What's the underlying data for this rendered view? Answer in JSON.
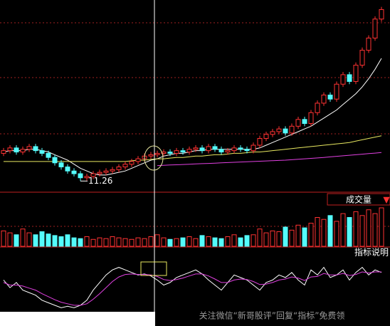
{
  "chart_data": [
    {
      "type": "candlestick",
      "open": [
        13.3,
        13.5,
        13.7,
        13.4,
        13.6,
        13.8,
        13.5,
        13.3,
        13.0,
        12.6,
        12.3,
        12.0,
        11.8,
        11.5,
        11.6,
        11.8,
        11.9,
        12.0,
        12.1,
        12.3,
        12.5,
        12.7,
        12.9,
        13.1,
        13.2,
        13.3,
        13.4,
        13.3,
        13.5,
        13.4,
        13.6,
        13.7,
        13.5,
        13.8,
        13.6,
        13.4,
        13.5,
        13.7,
        13.6,
        13.5,
        13.9,
        14.4,
        14.7,
        14.9,
        15.1,
        14.8,
        15.3,
        15.8,
        15.5,
        16.3,
        17.0,
        17.6,
        17.3,
        18.4,
        19.1,
        18.6,
        19.8,
        20.9,
        21.8,
        23.2
      ],
      "close": [
        13.5,
        13.7,
        13.4,
        13.6,
        13.8,
        13.5,
        13.3,
        13.0,
        12.6,
        12.3,
        12.0,
        11.8,
        11.5,
        11.6,
        11.8,
        11.9,
        12.0,
        12.1,
        12.3,
        12.5,
        12.7,
        12.9,
        13.1,
        13.2,
        13.3,
        13.4,
        13.3,
        13.5,
        13.4,
        13.6,
        13.7,
        13.5,
        13.8,
        13.6,
        13.4,
        13.5,
        13.7,
        13.6,
        13.5,
        13.9,
        14.4,
        14.7,
        14.9,
        15.1,
        14.8,
        15.3,
        15.8,
        15.5,
        16.3,
        17.0,
        17.6,
        17.3,
        18.4,
        19.1,
        18.6,
        19.8,
        20.9,
        21.8,
        23.2,
        23.9
      ],
      "high": [
        13.7,
        13.9,
        13.9,
        13.8,
        14.0,
        14.0,
        13.7,
        13.5,
        13.2,
        12.8,
        12.5,
        12.2,
        12.0,
        11.8,
        12.0,
        12.1,
        12.2,
        12.3,
        12.5,
        12.7,
        12.9,
        13.1,
        13.3,
        13.4,
        13.5,
        13.6,
        13.6,
        13.7,
        13.7,
        13.8,
        13.9,
        13.9,
        14.0,
        14.0,
        13.8,
        13.7,
        13.9,
        13.9,
        13.8,
        14.1,
        14.6,
        14.9,
        15.1,
        15.3,
        15.3,
        15.5,
        16.0,
        16.0,
        16.5,
        17.2,
        17.8,
        17.8,
        18.6,
        19.3,
        19.3,
        20.0,
        21.1,
        22.0,
        23.4,
        24.1
      ],
      "low": [
        13.1,
        13.3,
        13.2,
        13.2,
        13.4,
        13.3,
        13.1,
        12.8,
        12.4,
        12.1,
        11.8,
        11.6,
        11.26,
        11.3,
        11.4,
        11.6,
        11.7,
        11.8,
        11.9,
        12.1,
        12.3,
        12.5,
        12.7,
        12.9,
        13.0,
        13.1,
        13.1,
        13.1,
        13.2,
        13.2,
        13.4,
        13.3,
        13.3,
        13.4,
        13.2,
        13.2,
        13.3,
        13.4,
        13.3,
        13.3,
        13.7,
        14.2,
        14.5,
        14.7,
        14.6,
        14.6,
        15.1,
        15.3,
        15.3,
        16.1,
        16.8,
        17.1,
        17.1,
        18.2,
        18.4,
        18.4,
        19.6,
        20.7,
        21.6,
        23.0
      ],
      "annotation": "11.26",
      "ylim": [
        10.7,
        24.5
      ],
      "up_color": "#ff3232",
      "down_color": "#54fcfc",
      "lines": [
        {
          "color": "#ffffff",
          "values": [
            13.4,
            13.5,
            13.5,
            13.5,
            13.6,
            13.6,
            13.5,
            13.4,
            13.2,
            13.0,
            12.8,
            12.5,
            12.2,
            12.0,
            11.8,
            11.7,
            11.7,
            11.8,
            11.9,
            12.0,
            12.2,
            12.4,
            12.6,
            12.8,
            12.9,
            13.1,
            13.2,
            13.3,
            13.3,
            13.4,
            13.5,
            13.5,
            13.6,
            13.6,
            13.6,
            13.6,
            13.6,
            13.6,
            13.6,
            13.6,
            13.7,
            13.9,
            14.1,
            14.3,
            14.5,
            14.7,
            14.9,
            15.1,
            15.3,
            15.6,
            15.9,
            16.2,
            16.5,
            16.9,
            17.3,
            17.7,
            18.2,
            18.8,
            19.5,
            20.3
          ]
        },
        {
          "color": "#e8e860",
          "values": [
            12.7,
            12.7,
            12.7,
            12.7,
            12.7,
            12.7,
            12.7,
            12.7,
            12.7,
            12.7,
            12.7,
            12.7,
            12.7,
            12.7,
            12.7,
            12.7,
            12.7,
            12.7,
            12.7,
            12.7,
            12.75,
            12.8,
            12.8,
            12.85,
            12.9,
            12.9,
            12.95,
            13.0,
            13.0,
            13.05,
            13.1,
            13.1,
            13.15,
            13.2,
            13.2,
            13.25,
            13.3,
            13.3,
            13.35,
            13.4,
            13.4,
            13.45,
            13.5,
            13.55,
            13.6,
            13.65,
            13.7,
            13.75,
            13.8,
            13.85,
            13.9,
            13.95,
            14.0,
            14.05,
            14.1,
            14.2,
            14.3,
            14.4,
            14.5,
            14.6
          ]
        },
        {
          "color": "#e040e0",
          "values": [
            null,
            null,
            null,
            null,
            null,
            null,
            null,
            null,
            null,
            null,
            null,
            null,
            null,
            null,
            null,
            null,
            null,
            null,
            null,
            null,
            null,
            null,
            null,
            null,
            12.4,
            12.42,
            12.44,
            12.46,
            12.48,
            12.5,
            12.52,
            12.54,
            12.56,
            12.58,
            12.6,
            12.62,
            12.64,
            12.66,
            12.68,
            12.7,
            12.72,
            12.74,
            12.76,
            12.78,
            12.8,
            12.83,
            12.86,
            12.9,
            12.93,
            12.96,
            13.0,
            13.04,
            13.08,
            13.12,
            13.16,
            13.2,
            13.24,
            13.28,
            13.32,
            13.36
          ]
        }
      ]
    },
    {
      "type": "bar",
      "title": "成交量",
      "values": [
        40,
        35,
        30,
        45,
        35,
        30,
        38,
        32,
        28,
        25,
        30,
        22,
        20,
        25,
        18,
        22,
        20,
        25,
        22,
        20,
        18,
        22,
        20,
        25,
        30,
        22,
        18,
        20,
        22,
        25,
        20,
        28,
        25,
        22,
        20,
        25,
        30,
        22,
        28,
        30,
        45,
        35,
        40,
        38,
        50,
        42,
        55,
        48,
        60,
        75,
        70,
        80,
        65,
        85,
        75,
        90,
        80,
        95,
        85,
        100
      ],
      "ylim": [
        0,
        100
      ]
    },
    {
      "type": "line",
      "title": "指标说明",
      "ylim": [
        0,
        100
      ],
      "lines": [
        {
          "color": "#ffffff",
          "values": [
            60,
            45,
            55,
            40,
            35,
            30,
            20,
            15,
            10,
            5,
            8,
            5,
            10,
            20,
            40,
            55,
            70,
            80,
            85,
            80,
            75,
            70,
            72,
            68,
            60,
            50,
            55,
            65,
            70,
            75,
            80,
            72,
            60,
            50,
            40,
            55,
            70,
            65,
            60,
            50,
            40,
            55,
            60,
            70,
            65,
            75,
            60,
            50,
            80,
            70,
            85,
            65,
            70,
            80,
            60,
            75,
            85,
            70,
            80,
            75
          ]
        },
        {
          "color": "#e040e0",
          "values": [
            55,
            50,
            50,
            48,
            44,
            40,
            33,
            27,
            21,
            16,
            13,
            10,
            10,
            13,
            22,
            33,
            45,
            57,
            66,
            71,
            72,
            71,
            71,
            70,
            67,
            61,
            59,
            61,
            64,
            68,
            72,
            72,
            68,
            62,
            55,
            55,
            60,
            62,
            61,
            57,
            51,
            52,
            55,
            60,
            62,
            66,
            64,
            59,
            66,
            67,
            73,
            70,
            70,
            73,
            69,
            71,
            76,
            74,
            76,
            76
          ]
        }
      ]
    }
  ],
  "watermark": "关注微信“新哥股评”回复“指标”免费领"
}
